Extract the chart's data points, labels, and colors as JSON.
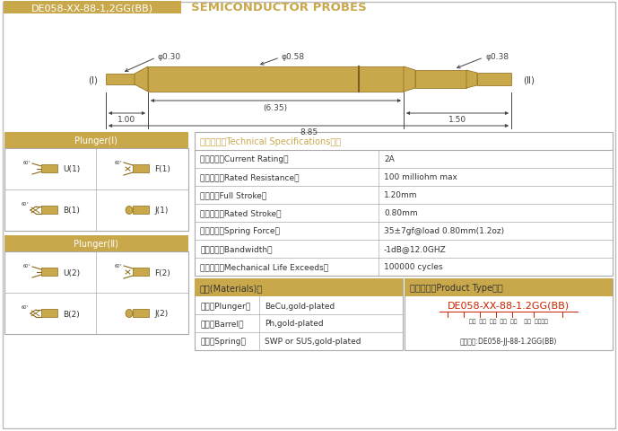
{
  "title_box_text": "DE058-XX-88-1,2GG(BB)",
  "title_main": "SEMICONDUCTOR PROBES",
  "header_bg": "#C9A84C",
  "header_text_color": "#FFFFFF",
  "title_text_color": "#C9A84C",
  "bg_color": "#FFFFFF",
  "border_color": "#AAAAAA",
  "table_line_color": "#AAAAAA",
  "dim_line_color": "#444444",
  "probe_color": "#C9A84C",
  "probe_outline": "#8B6914",
  "probe_shadow": "#A07830",
  "label_color": "#333333",
  "gold_text": "#C9A84C",
  "red_text": "#CC2200",
  "dims": {
    "d030": "φ0.30",
    "d058": "φ0.58",
    "d038": "φ0.38",
    "len635": "(6.35)",
    "len100": "1.00",
    "len150": "1.50",
    "len885": "8.85"
  },
  "specs": [
    [
      "额定电流（Current Rating）",
      "2A"
    ],
    [
      "额定电阱（Rated Resistance）",
      "100 milliohm max"
    ],
    [
      "满行程（Full Stroke）",
      "1.20mm"
    ],
    [
      "额定行程（Rated Stroke）",
      "0.80mm"
    ],
    [
      "额定弹力（Spring Force）",
      "35±7gf@load 0.80mm(1.2oz)"
    ],
    [
      "频率带宽（Bandwidth）",
      "-1dB@12.0GHZ"
    ],
    [
      "测试寿命（Mechanical Life Exceeds）",
      "100000 cycles"
    ]
  ],
  "tech_header": "技术要求（Technical Specifications）：",
  "materials_header": "材质(Materials)：",
  "materials": [
    [
      "针头（Plunger）",
      "BeCu,gold-plated"
    ],
    [
      "针管（Barrel）",
      "Ph,gold-plated"
    ],
    [
      "弹簧（Spring）",
      "SWP or SUS,gold-plated"
    ]
  ],
  "product_header": "成品型号（Product Type）：",
  "product_code": "DE058-XX-88-1.2GG(BB)",
  "product_labels": "系列  规格  头型  行程  弹力    镀金  针头材质",
  "product_example": "订购举例:DE058-JJ-88-1.2GG(BB)",
  "plunger1_header": "Plunger(Ⅰ)",
  "plunger2_header": "Plunger(Ⅱ)",
  "plunger1_types": [
    [
      "U(1)",
      "F(1)"
    ],
    [
      "B(1)",
      "J(1)"
    ]
  ],
  "plunger2_types": [
    [
      "U(2)",
      "F(2)"
    ],
    [
      "B(2)",
      "J(2)"
    ]
  ]
}
